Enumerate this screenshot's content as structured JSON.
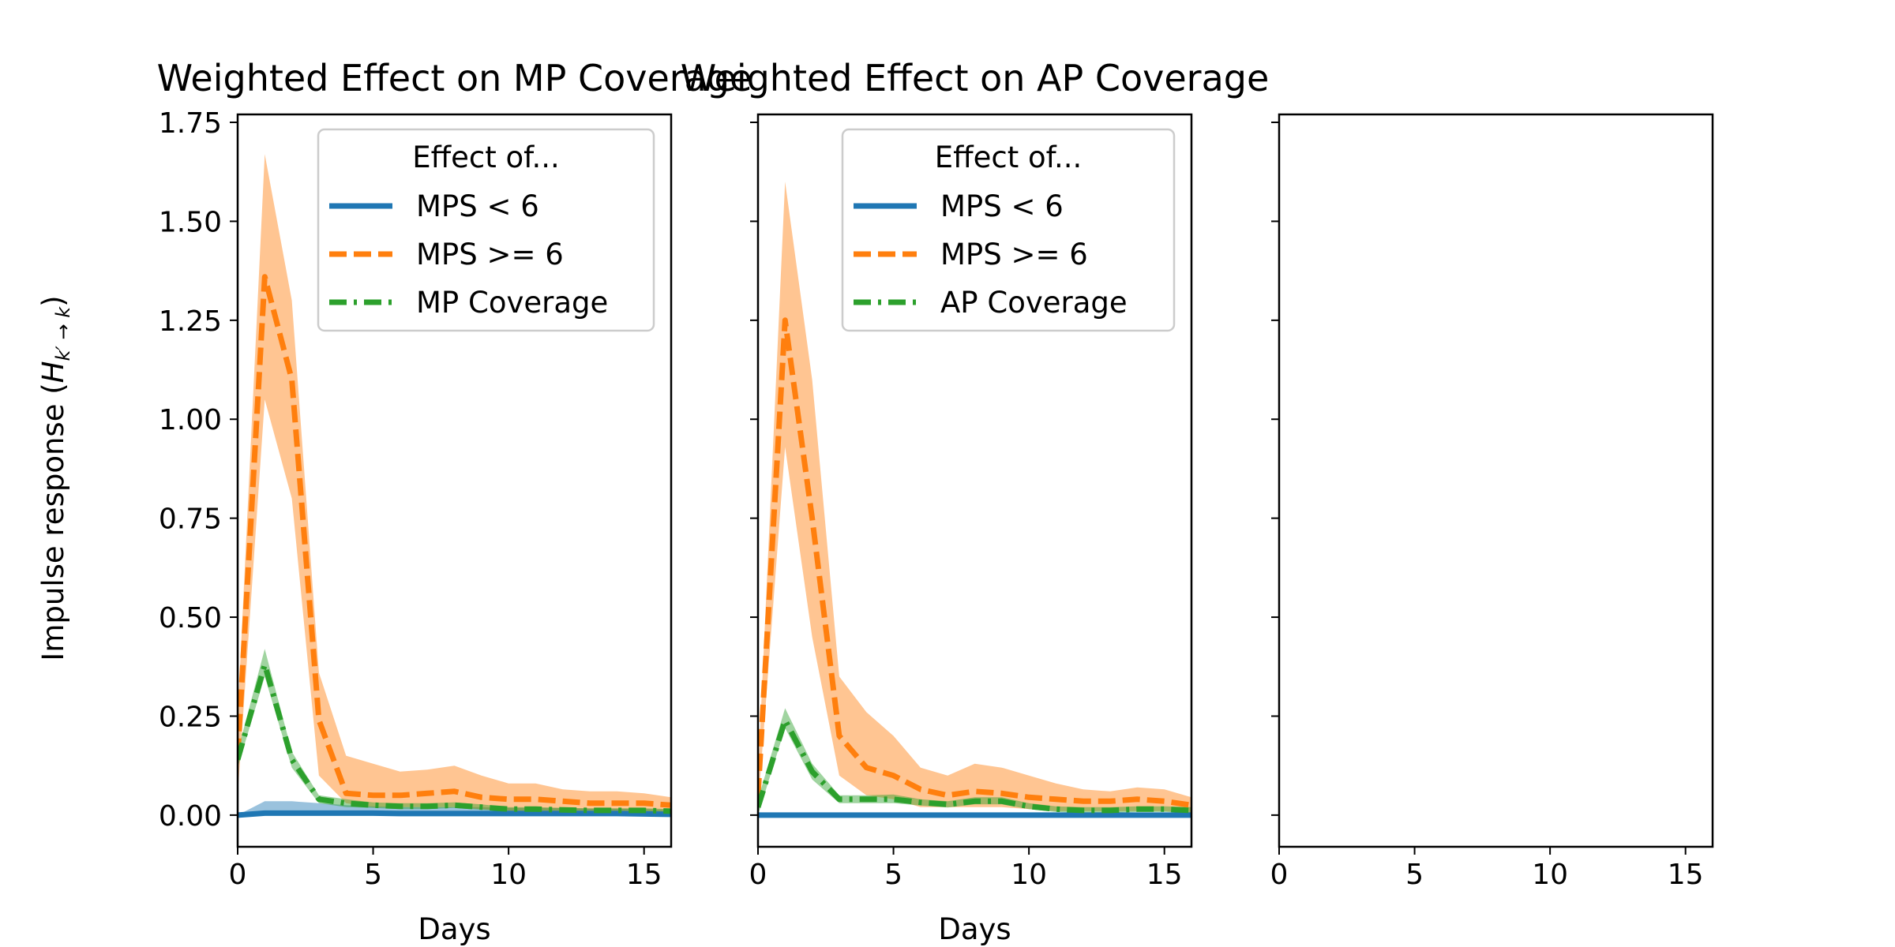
{
  "figure": {
    "ylabel": "Impulse response (",
    "ylabel_math": "H",
    "ylabel_sub": "k′ → k",
    "ylabel_close": ")"
  },
  "colors": {
    "blue": "#1f77b4",
    "orange": "#ff7f0e",
    "green": "#2ca02c"
  },
  "chart_data": [
    {
      "type": "line",
      "title": "Weighted Effect on MP Coverage",
      "xlabel": "Days",
      "xlim": [
        0,
        16
      ],
      "ylim": [
        -0.08,
        1.77
      ],
      "xticks": [
        0,
        5,
        10,
        15
      ],
      "xtick_labels": [
        "0",
        "5",
        "10",
        "15"
      ],
      "yticks": [
        0,
        0.25,
        0.5,
        0.75,
        1.0,
        1.25,
        1.5,
        1.75
      ],
      "ytick_labels": [
        "0.00",
        "0.25",
        "0.50",
        "0.75",
        "1.00",
        "1.25",
        "1.50",
        "1.75"
      ],
      "show_ytick_labels": true,
      "grid": false,
      "legend": {
        "title": "Effect of...",
        "placement": "upper right",
        "entries": [
          "MPS < 6",
          "MPS >= 6",
          "MP Coverage"
        ]
      },
      "x": [
        0,
        1,
        2,
        3,
        4,
        5,
        6,
        7,
        8,
        9,
        10,
        11,
        12,
        13,
        14,
        15,
        16
      ],
      "series": [
        {
          "name": "MPS < 6",
          "color_key": "blue",
          "style": "solid",
          "values": [
            0.0,
            0.005,
            0.005,
            0.005,
            0.005,
            0.005,
            0.004,
            0.004,
            0.004,
            0.004,
            0.004,
            0.004,
            0.004,
            0.004,
            0.004,
            0.003,
            0.002
          ],
          "lower": [
            0.0,
            0.0,
            0.0,
            0.0,
            0.0,
            0.0,
            0.0,
            0.0,
            0.0,
            0.0,
            0.0,
            0.0,
            0.0,
            0.0,
            0.0,
            0.0,
            0.0
          ],
          "upper": [
            0.0,
            0.035,
            0.035,
            0.03,
            0.025,
            0.022,
            0.02,
            0.02,
            0.02,
            0.02,
            0.018,
            0.018,
            0.018,
            0.016,
            0.016,
            0.015,
            0.012
          ]
        },
        {
          "name": "MPS >= 6",
          "color_key": "orange",
          "style": "dashed",
          "values": [
            0.15,
            1.36,
            1.1,
            0.24,
            0.055,
            0.05,
            0.05,
            0.055,
            0.06,
            0.045,
            0.04,
            0.04,
            0.035,
            0.03,
            0.03,
            0.03,
            0.025
          ],
          "lower": [
            0.05,
            1.05,
            0.8,
            0.1,
            0.03,
            0.02,
            0.02,
            0.02,
            0.02,
            0.015,
            0.01,
            0.01,
            0.01,
            0.005,
            0.005,
            0.005,
            0.005
          ],
          "upper": [
            0.25,
            1.67,
            1.3,
            0.36,
            0.15,
            0.13,
            0.11,
            0.115,
            0.125,
            0.1,
            0.08,
            0.08,
            0.065,
            0.06,
            0.06,
            0.055,
            0.045
          ]
        },
        {
          "name": "MP Coverage",
          "color_key": "green",
          "style": "dashdot",
          "values": [
            0.14,
            0.38,
            0.14,
            0.04,
            0.03,
            0.025,
            0.022,
            0.022,
            0.025,
            0.02,
            0.015,
            0.015,
            0.013,
            0.012,
            0.012,
            0.012,
            0.01
          ],
          "lower": [
            0.12,
            0.35,
            0.12,
            0.03,
            0.02,
            0.018,
            0.015,
            0.015,
            0.018,
            0.013,
            0.01,
            0.01,
            0.008,
            0.007,
            0.007,
            0.007,
            0.005
          ],
          "upper": [
            0.16,
            0.42,
            0.16,
            0.05,
            0.04,
            0.032,
            0.03,
            0.03,
            0.032,
            0.027,
            0.02,
            0.02,
            0.018,
            0.017,
            0.017,
            0.017,
            0.015
          ]
        }
      ]
    },
    {
      "type": "line",
      "title": "Weighted Effect on AP Coverage",
      "xlabel": "Days",
      "xlim": [
        0,
        16
      ],
      "ylim": [
        -0.08,
        1.77
      ],
      "xticks": [
        0,
        5,
        10,
        15
      ],
      "xtick_labels": [
        "0",
        "5",
        "10",
        "15"
      ],
      "yticks": [
        0,
        0.25,
        0.5,
        0.75,
        1.0,
        1.25,
        1.5,
        1.75
      ],
      "ytick_labels": [
        "0.00",
        "0.25",
        "0.50",
        "0.75",
        "1.00",
        "1.25",
        "1.50",
        "1.75"
      ],
      "show_ytick_labels": false,
      "grid": false,
      "legend": {
        "title": "Effect of...",
        "placement": "upper right",
        "entries": [
          "MPS < 6",
          "MPS >= 6",
          "AP Coverage"
        ]
      },
      "x": [
        0,
        1,
        2,
        3,
        4,
        5,
        6,
        7,
        8,
        9,
        10,
        11,
        12,
        13,
        14,
        15,
        16
      ],
      "series": [
        {
          "name": "MPS < 6",
          "color_key": "blue",
          "style": "solid",
          "values": [
            0.0,
            0.0,
            0.0,
            0.0,
            0.0,
            0.0,
            0.0,
            0.0,
            0.0,
            0.0,
            0.0,
            0.0,
            0.0,
            0.0,
            0.0,
            0.0,
            0.0
          ],
          "lower": [
            0.0,
            0.0,
            0.0,
            0.0,
            0.0,
            0.0,
            0.0,
            0.0,
            0.0,
            0.0,
            0.0,
            0.0,
            0.0,
            0.0,
            0.0,
            0.0,
            0.0
          ],
          "upper": [
            0.0,
            0.005,
            0.005,
            0.005,
            0.005,
            0.005,
            0.005,
            0.005,
            0.005,
            0.005,
            0.005,
            0.005,
            0.005,
            0.005,
            0.005,
            0.005,
            0.005
          ]
        },
        {
          "name": "MPS >= 6",
          "color_key": "orange",
          "style": "dashed",
          "values": [
            0.05,
            1.25,
            0.75,
            0.2,
            0.12,
            0.1,
            0.065,
            0.05,
            0.06,
            0.055,
            0.045,
            0.04,
            0.035,
            0.035,
            0.04,
            0.035,
            0.025
          ],
          "lower": [
            0.02,
            0.93,
            0.45,
            0.1,
            0.05,
            0.04,
            0.02,
            0.02,
            0.02,
            0.02,
            0.015,
            0.01,
            0.01,
            0.01,
            0.01,
            0.01,
            0.005
          ],
          "upper": [
            0.1,
            1.6,
            1.1,
            0.35,
            0.26,
            0.2,
            0.12,
            0.1,
            0.13,
            0.12,
            0.1,
            0.08,
            0.065,
            0.06,
            0.07,
            0.065,
            0.045
          ]
        },
        {
          "name": "AP Coverage",
          "color_key": "green",
          "style": "dashdot",
          "values": [
            0.02,
            0.24,
            0.11,
            0.04,
            0.04,
            0.04,
            0.032,
            0.027,
            0.035,
            0.035,
            0.022,
            0.015,
            0.012,
            0.012,
            0.015,
            0.015,
            0.012
          ],
          "lower": [
            0.0,
            0.22,
            0.09,
            0.03,
            0.03,
            0.03,
            0.024,
            0.019,
            0.027,
            0.027,
            0.015,
            0.008,
            0.006,
            0.006,
            0.008,
            0.008,
            0.006
          ],
          "upper": [
            0.04,
            0.27,
            0.13,
            0.05,
            0.05,
            0.052,
            0.04,
            0.035,
            0.045,
            0.045,
            0.03,
            0.022,
            0.02,
            0.02,
            0.022,
            0.022,
            0.02
          ]
        }
      ]
    },
    {
      "type": "line",
      "title": "",
      "xlabel": "",
      "xlim": [
        0,
        16
      ],
      "ylim": [
        -0.08,
        1.77
      ],
      "xticks": [
        0,
        5,
        10,
        15
      ],
      "xtick_labels": [
        "0",
        "5",
        "10",
        "15"
      ],
      "yticks": [
        0,
        0.25,
        0.5,
        0.75,
        1.0,
        1.25,
        1.5,
        1.75
      ],
      "ytick_labels": [
        "0.00",
        "0.25",
        "0.50",
        "0.75",
        "1.00",
        "1.25",
        "1.50",
        "1.75"
      ],
      "show_ytick_labels": false,
      "grid": false,
      "legend": null,
      "x": [],
      "series": []
    }
  ]
}
